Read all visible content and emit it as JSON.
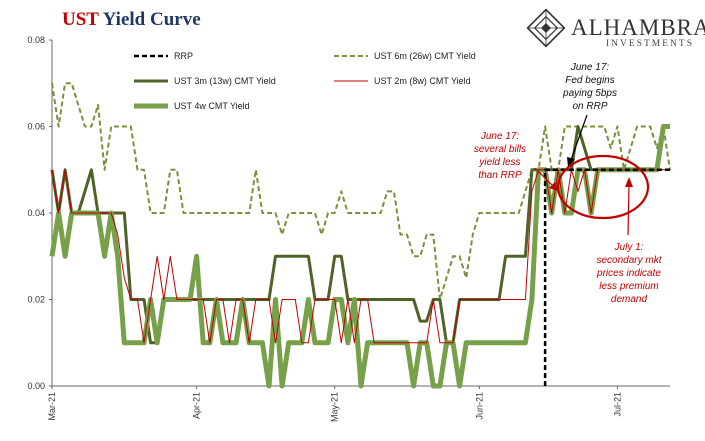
{
  "title": {
    "part1": "UST",
    "part2": " Yield Curve"
  },
  "logo": {
    "name": "ALHAMBRA",
    "sub": "INVESTMENTS"
  },
  "colors": {
    "rrp": "#000000",
    "ust6m": "#76923c",
    "ust3m": "#4f6228",
    "ust2m": "#c00000",
    "ust4w": "#77a04a",
    "annotation_red": "#c00000"
  },
  "annotations": {
    "june17_rrp": [
      "June 17:",
      "Fed begins",
      "paying 5bps",
      "on RRP"
    ],
    "june17_bills": [
      "June 17:",
      "several bills",
      "yield less",
      "than RRP"
    ],
    "july1": [
      "July 1:",
      "secondary mkt",
      "prices indicate",
      "less premium",
      "demand"
    ]
  },
  "chart_data": {
    "type": "line",
    "xlabel": "",
    "ylabel": "",
    "ylim": [
      0,
      0.08
    ],
    "yticks": [
      "0.00",
      "0.02",
      "0.04",
      "0.06",
      "0.08"
    ],
    "xtick_labels": [
      "Mar-21",
      "Apr-21",
      "May-21",
      "Jun-21",
      "Jul-21"
    ],
    "xtick_index": [
      0,
      22,
      43,
      65,
      86
    ],
    "n_points": 95,
    "legend_placement": "top-left",
    "series": [
      {
        "name": "RRP",
        "style": "dashed",
        "values": [
          0,
          0,
          0,
          0,
          0,
          0,
          0,
          0,
          0,
          0,
          0,
          0,
          0,
          0,
          0,
          0,
          0,
          0,
          0,
          0,
          0,
          0,
          0,
          0,
          0,
          0,
          0,
          0,
          0,
          0,
          0,
          0,
          0,
          0,
          0,
          0,
          0,
          0,
          0,
          0,
          0,
          0,
          0,
          0,
          0,
          0,
          0,
          0,
          0,
          0,
          0,
          0,
          0,
          0,
          0,
          0,
          0,
          0,
          0,
          0,
          0,
          0,
          0,
          0,
          0,
          0,
          0,
          0,
          0,
          0,
          0,
          0,
          0,
          0,
          0,
          0.05,
          0.05,
          0.05,
          0.05,
          0.05,
          0.05,
          0.05,
          0.05,
          0.05,
          0.05,
          0.05,
          0.05,
          0.05,
          0.05,
          0.05,
          0.05,
          0.05,
          0.05,
          0.05,
          0.05
        ]
      },
      {
        "name": "UST 6m (26w) CMT Yield",
        "style": "dashed",
        "values": [
          0.07,
          0.06,
          0.07,
          0.07,
          0.065,
          0.06,
          0.06,
          0.065,
          0.05,
          0.06,
          0.06,
          0.06,
          0.06,
          0.05,
          0.05,
          0.04,
          0.04,
          0.04,
          0.05,
          0.05,
          0.04,
          0.04,
          0.04,
          0.04,
          0.04,
          0.04,
          0.04,
          0.04,
          0.04,
          0.04,
          0.04,
          0.05,
          0.04,
          0.04,
          0.04,
          0.035,
          0.04,
          0.04,
          0.04,
          0.04,
          0.04,
          0.035,
          0.04,
          0.04,
          0.045,
          0.04,
          0.04,
          0.04,
          0.04,
          0.04,
          0.04,
          0.045,
          0.045,
          0.035,
          0.035,
          0.03,
          0.03,
          0.035,
          0.035,
          0.02,
          0.025,
          0.03,
          0.03,
          0.025,
          0.035,
          0.04,
          0.04,
          0.04,
          0.04,
          0.04,
          0.04,
          0.04,
          0.045,
          0.05,
          0.05,
          0.06,
          0.05,
          0.05,
          0.06,
          0.06,
          0.06,
          0.06,
          0.06,
          0.06,
          0.06,
          0.055,
          0.06,
          0.05,
          0.055,
          0.06,
          0.06,
          0.06,
          0.055,
          0.06,
          0.05
        ]
      },
      {
        "name": "UST 3m (13w) CMT Yield",
        "style": "solid",
        "values": [
          0.05,
          0.04,
          0.05,
          0.04,
          0.04,
          0.045,
          0.05,
          0.04,
          0.04,
          0.04,
          0.04,
          0.04,
          0.02,
          0.02,
          0.02,
          0.01,
          0.01,
          0.02,
          0.02,
          0.02,
          0.02,
          0.02,
          0.02,
          0.02,
          0.02,
          0.02,
          0.02,
          0.02,
          0.02,
          0.02,
          0.02,
          0.02,
          0.02,
          0.02,
          0.03,
          0.03,
          0.03,
          0.03,
          0.03,
          0.03,
          0.02,
          0.02,
          0.02,
          0.03,
          0.03,
          0.02,
          0.02,
          0.02,
          0.02,
          0.02,
          0.02,
          0.02,
          0.02,
          0.02,
          0.02,
          0.02,
          0.015,
          0.015,
          0.02,
          0.02,
          0.01,
          0.01,
          0.02,
          0.02,
          0.02,
          0.02,
          0.02,
          0.02,
          0.02,
          0.03,
          0.03,
          0.03,
          0.03,
          0.05,
          0.05,
          0.05,
          0.05,
          0.05,
          0.05,
          0.05,
          0.06,
          0.055,
          0.05,
          0.05,
          0.05,
          0.05,
          0.05,
          0.05,
          0.05,
          0.05,
          0.05,
          0.05,
          0.05,
          0.06,
          0.06
        ]
      },
      {
        "name": "UST 2m (8w) CMT Yield",
        "style": "thin",
        "values": [
          0.05,
          0.04,
          0.05,
          0.04,
          0.04,
          0.04,
          0.04,
          0.04,
          0.04,
          0.04,
          0.035,
          0.025,
          0.02,
          0.02,
          0.01,
          0.02,
          0.03,
          0.02,
          0.03,
          0.02,
          0.02,
          0.02,
          0.02,
          0.02,
          0.01,
          0.02,
          0.02,
          0.01,
          0.02,
          0.02,
          0.01,
          0.02,
          0.02,
          0.02,
          0.01,
          0.02,
          0.02,
          0.02,
          0.01,
          0.01,
          0.02,
          0.02,
          0.02,
          0.02,
          0.01,
          0.02,
          0.01,
          0.02,
          0.02,
          0.01,
          0.01,
          0.01,
          0.01,
          0.01,
          0.01,
          0.01,
          0.01,
          0.01,
          0.02,
          0.01,
          0.01,
          0.01,
          0.02,
          0.02,
          0.02,
          0.02,
          0.02,
          0.02,
          0.02,
          0.02,
          0.02,
          0.02,
          0.02,
          0.045,
          0.05,
          0.05,
          0.04,
          0.05,
          0.04,
          0.05,
          0.045,
          0.05,
          0.04,
          0.05,
          0.05,
          0.05,
          0.05,
          0.05,
          0.05,
          0.05,
          0.05,
          0.05,
          0.05,
          0.05,
          0.05
        ]
      },
      {
        "name": "UST 4w CMT Yield",
        "style": "thick",
        "values": [
          0.03,
          0.04,
          0.03,
          0.04,
          0.04,
          0.04,
          0.04,
          0.04,
          0.03,
          0.04,
          0.03,
          0.01,
          0.01,
          0.01,
          0.01,
          0.02,
          0.01,
          0.02,
          0.02,
          0.02,
          0.02,
          0.02,
          0.03,
          0.01,
          0.01,
          0.02,
          0.01,
          0.01,
          0.01,
          0.02,
          0.01,
          0.01,
          0.01,
          0.0,
          0.02,
          0.0,
          0.01,
          0.01,
          0.01,
          0.02,
          0.01,
          0.01,
          0.01,
          0.02,
          0.02,
          0.01,
          0.02,
          0.0,
          0.01,
          0.01,
          0.01,
          0.01,
          0.01,
          0.01,
          0.01,
          0.0,
          0.01,
          0.01,
          0.0,
          0.0,
          0.01,
          0.01,
          0.0,
          0.01,
          0.01,
          0.01,
          0.01,
          0.01,
          0.01,
          0.01,
          0.01,
          0.01,
          0.01,
          0.02,
          0.05,
          0.05,
          0.04,
          0.05,
          0.04,
          0.04,
          0.05,
          0.05,
          0.04,
          0.05,
          0.05,
          0.05,
          0.05,
          0.05,
          0.05,
          0.05,
          0.05,
          0.05,
          0.05,
          0.06,
          0.06
        ]
      }
    ]
  }
}
